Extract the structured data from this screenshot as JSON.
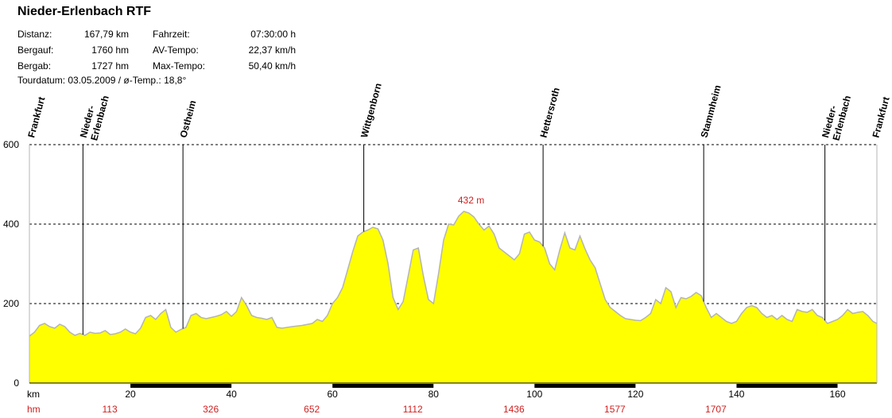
{
  "title": "Nieder-Erlenbach RTF",
  "stats": {
    "left": [
      {
        "label": "Distanz:",
        "value": "167,79 km"
      },
      {
        "label": "Bergauf:",
        "value": "1760 hm"
      },
      {
        "label": "Bergab:",
        "value": "1727 hm"
      }
    ],
    "right": [
      {
        "label": "Fahrzeit:",
        "value": "07:30:00 h"
      },
      {
        "label": "AV-Tempo:",
        "value": "22,37 km/h"
      },
      {
        "label": "Max-Tempo:",
        "value": "50,40 km/h"
      }
    ]
  },
  "tour_line": "Tourdatum: 03.05.2009  /  ø-Temp.: 18,8°",
  "colors": {
    "fill": "#ffff00",
    "outline": "#b4b4b4",
    "accent_red": "#d02020",
    "axis": "#000000"
  },
  "chart_data": {
    "type": "area",
    "xlim": [
      0,
      167.79
    ],
    "ylim": [
      0,
      600
    ],
    "grid": "dashed horizontal",
    "y_ticks": [
      0,
      200,
      400,
      600
    ],
    "x_ticks": [
      20,
      40,
      60,
      80,
      100,
      120,
      140,
      160
    ],
    "x_unit_label": "km",
    "hm_row_label": "hm",
    "hm_marks": [
      {
        "km": 20,
        "value": "113"
      },
      {
        "km": 40,
        "value": "326"
      },
      {
        "km": 60,
        "value": "652"
      },
      {
        "km": 80,
        "value": "1112"
      },
      {
        "km": 100,
        "value": "1436"
      },
      {
        "km": 120,
        "value": "1577"
      },
      {
        "km": 140,
        "value": "1707"
      }
    ],
    "max_label": {
      "text": "432 m",
      "km": 86.5,
      "value": 432
    },
    "waypoints": [
      {
        "name": "Frankfurt",
        "km": 0.3
      },
      {
        "name": "Nieder-Erlenbach",
        "lines": [
          "Nieder-",
          "Erlenbach"
        ],
        "km": 10.6
      },
      {
        "name": "Ostheim",
        "km": 30.4
      },
      {
        "name": "Wittgenborn",
        "km": 66.2
      },
      {
        "name": "Hettersroth",
        "km": 101.7
      },
      {
        "name": "Stammheim",
        "km": 133.5
      },
      {
        "name": "Nieder-Erlenbach",
        "lines": [
          "Nieder-",
          "Erlenbach"
        ],
        "km": 157.5
      },
      {
        "name": "Frankfurt",
        "km": 167.5
      }
    ],
    "profile": [
      [
        0,
        118
      ],
      [
        1,
        128
      ],
      [
        2,
        145
      ],
      [
        3,
        150
      ],
      [
        4,
        142
      ],
      [
        5,
        138
      ],
      [
        6,
        148
      ],
      [
        7,
        142
      ],
      [
        8,
        128
      ],
      [
        9,
        120
      ],
      [
        10,
        125
      ],
      [
        11,
        120
      ],
      [
        12,
        128
      ],
      [
        13,
        125
      ],
      [
        14,
        126
      ],
      [
        15,
        132
      ],
      [
        16,
        122
      ],
      [
        17,
        124
      ],
      [
        18,
        128
      ],
      [
        19,
        136
      ],
      [
        20,
        128
      ],
      [
        21,
        124
      ],
      [
        22,
        138
      ],
      [
        23,
        165
      ],
      [
        24,
        170
      ],
      [
        25,
        160
      ],
      [
        26,
        175
      ],
      [
        27,
        185
      ],
      [
        28,
        140
      ],
      [
        29,
        128
      ],
      [
        30,
        135
      ],
      [
        31,
        140
      ],
      [
        32,
        170
      ],
      [
        33,
        175
      ],
      [
        34,
        165
      ],
      [
        35,
        162
      ],
      [
        36,
        165
      ],
      [
        37,
        168
      ],
      [
        38,
        172
      ],
      [
        39,
        180
      ],
      [
        40,
        168
      ],
      [
        41,
        180
      ],
      [
        42,
        215
      ],
      [
        43,
        195
      ],
      [
        44,
        170
      ],
      [
        45,
        165
      ],
      [
        46,
        163
      ],
      [
        47,
        160
      ],
      [
        48,
        165
      ],
      [
        49,
        140
      ],
      [
        50,
        138
      ],
      [
        52,
        142
      ],
      [
        54,
        145
      ],
      [
        56,
        150
      ],
      [
        57,
        160
      ],
      [
        58,
        155
      ],
      [
        59,
        170
      ],
      [
        60,
        200
      ],
      [
        61,
        215
      ],
      [
        62,
        240
      ],
      [
        63,
        285
      ],
      [
        64,
        330
      ],
      [
        65,
        370
      ],
      [
        66,
        380
      ],
      [
        67,
        385
      ],
      [
        68,
        392
      ],
      [
        69,
        388
      ],
      [
        70,
        360
      ],
      [
        71,
        300
      ],
      [
        72,
        215
      ],
      [
        73,
        185
      ],
      [
        74,
        205
      ],
      [
        75,
        270
      ],
      [
        76,
        335
      ],
      [
        77,
        340
      ],
      [
        78,
        270
      ],
      [
        79,
        210
      ],
      [
        80,
        200
      ],
      [
        81,
        275
      ],
      [
        82,
        360
      ],
      [
        83,
        400
      ],
      [
        84,
        398
      ],
      [
        85,
        420
      ],
      [
        86,
        432
      ],
      [
        87,
        428
      ],
      [
        88,
        418
      ],
      [
        89,
        400
      ],
      [
        90,
        385
      ],
      [
        91,
        395
      ],
      [
        92,
        375
      ],
      [
        93,
        340
      ],
      [
        94,
        330
      ],
      [
        95,
        320
      ],
      [
        96,
        310
      ],
      [
        97,
        325
      ],
      [
        98,
        375
      ],
      [
        99,
        380
      ],
      [
        100,
        360
      ],
      [
        101,
        355
      ],
      [
        102,
        340
      ],
      [
        103,
        300
      ],
      [
        104,
        285
      ],
      [
        105,
        335
      ],
      [
        106,
        378
      ],
      [
        107,
        340
      ],
      [
        108,
        335
      ],
      [
        109,
        370
      ],
      [
        110,
        338
      ],
      [
        111,
        310
      ],
      [
        112,
        290
      ],
      [
        113,
        250
      ],
      [
        114,
        210
      ],
      [
        115,
        190
      ],
      [
        116,
        180
      ],
      [
        117,
        170
      ],
      [
        118,
        162
      ],
      [
        119,
        160
      ],
      [
        120,
        158
      ],
      [
        121,
        157
      ],
      [
        122,
        165
      ],
      [
        123,
        175
      ],
      [
        124,
        210
      ],
      [
        125,
        200
      ],
      [
        126,
        240
      ],
      [
        127,
        230
      ],
      [
        128,
        190
      ],
      [
        129,
        215
      ],
      [
        130,
        212
      ],
      [
        131,
        218
      ],
      [
        132,
        228
      ],
      [
        133,
        220
      ],
      [
        134,
        190
      ],
      [
        135,
        165
      ],
      [
        136,
        175
      ],
      [
        137,
        165
      ],
      [
        138,
        155
      ],
      [
        139,
        150
      ],
      [
        140,
        155
      ],
      [
        141,
        175
      ],
      [
        142,
        190
      ],
      [
        143,
        195
      ],
      [
        144,
        190
      ],
      [
        145,
        175
      ],
      [
        146,
        165
      ],
      [
        147,
        170
      ],
      [
        148,
        160
      ],
      [
        149,
        170
      ],
      [
        150,
        160
      ],
      [
        151,
        155
      ],
      [
        152,
        185
      ],
      [
        153,
        180
      ],
      [
        154,
        178
      ],
      [
        155,
        185
      ],
      [
        156,
        170
      ],
      [
        157,
        165
      ],
      [
        158,
        150
      ],
      [
        159,
        155
      ],
      [
        160,
        160
      ],
      [
        161,
        170
      ],
      [
        162,
        185
      ],
      [
        163,
        175
      ],
      [
        164,
        178
      ],
      [
        165,
        180
      ],
      [
        166,
        170
      ],
      [
        167,
        155
      ],
      [
        167.79,
        150
      ]
    ]
  }
}
